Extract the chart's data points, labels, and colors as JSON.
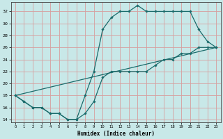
{
  "xlabel": "Humidex (Indice chaleur)",
  "bg_color": "#c8e8e8",
  "line_color": "#1a6b6b",
  "xlim": [
    -0.5,
    23.5
  ],
  "ylim": [
    13.5,
    33.5
  ],
  "xtick_labels": [
    "0",
    "1",
    "2",
    "3",
    "4",
    "5",
    "6",
    "7",
    "8",
    "9",
    "10",
    "11",
    "12",
    "13",
    "14",
    "15",
    "16",
    "17",
    "18",
    "19",
    "20",
    "21",
    "22",
    "23"
  ],
  "ytick_vals": [
    14,
    16,
    18,
    20,
    22,
    24,
    26,
    28,
    30,
    32
  ],
  "line1_x": [
    0,
    1,
    2,
    3,
    4,
    5,
    6,
    7,
    8,
    9,
    10,
    11,
    12,
    13,
    14,
    15,
    16,
    17,
    18,
    19,
    20,
    21,
    22,
    23
  ],
  "line1_y": [
    18,
    17,
    16,
    16,
    15,
    15,
    14,
    14,
    15,
    17,
    21,
    22,
    22,
    22,
    22,
    22,
    23,
    24,
    24,
    25,
    25,
    26,
    26,
    26
  ],
  "line2_x": [
    0,
    1,
    2,
    3,
    4,
    5,
    6,
    7,
    8,
    9,
    10,
    11,
    12,
    13,
    14,
    15,
    16,
    17,
    18,
    19,
    20,
    21,
    22,
    23
  ],
  "line2_y": [
    18,
    17,
    16,
    16,
    15,
    15,
    14,
    14,
    18,
    22,
    29,
    31,
    32,
    32,
    33,
    32,
    32,
    32,
    32,
    32,
    32,
    29,
    27,
    26
  ],
  "line3_x": [
    0,
    23
  ],
  "line3_y": [
    18,
    26
  ]
}
